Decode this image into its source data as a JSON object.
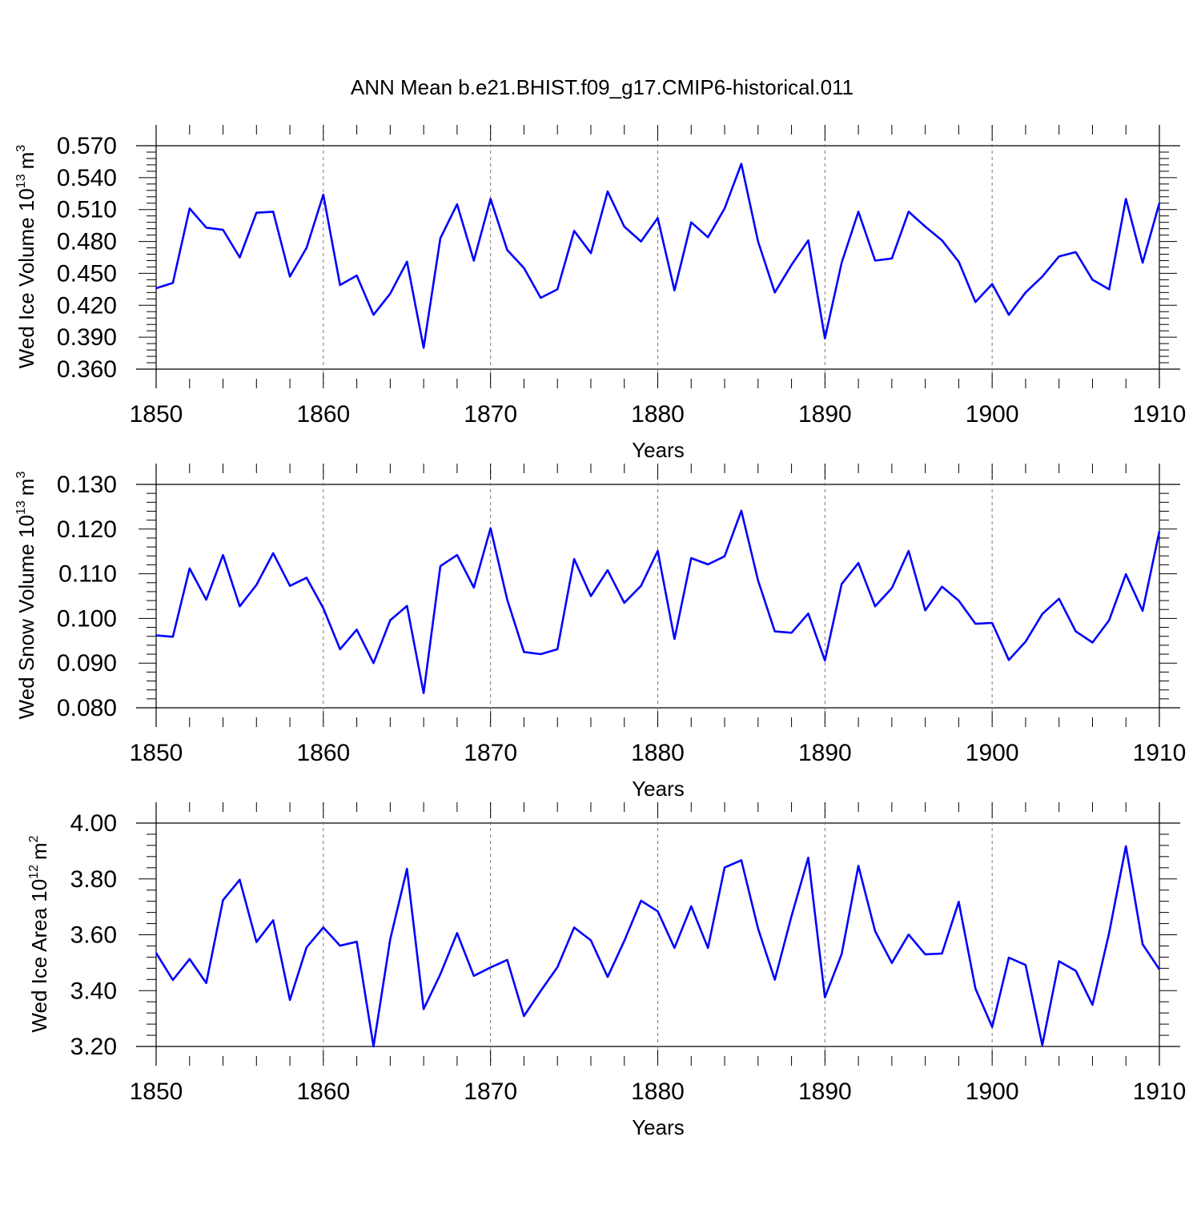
{
  "title": "ANN Mean b.e21.BHIST.f09_g17.CMIP6-historical.011",
  "chart_data": [
    {
      "type": "line",
      "ylabel_main": "Wed Ice Volume 10",
      "ylabel_exp": "13",
      "ylabel_unit": "m",
      "ylabel_unit_exp": "3",
      "xlabel": "Years",
      "xlim": [
        1850,
        1910
      ],
      "ylim": [
        0.36,
        0.57
      ],
      "yticks": [
        0.36,
        0.39,
        0.42,
        0.45,
        0.48,
        0.51,
        0.54,
        0.57
      ],
      "ytick_labels": [
        "0.360",
        "0.390",
        "0.420",
        "0.450",
        "0.480",
        "0.510",
        "0.540",
        "0.570"
      ],
      "xticks": [
        1850,
        1860,
        1870,
        1880,
        1890,
        1900,
        1910
      ],
      "xtick_labels": [
        "1850",
        "1860",
        "1870",
        "1880",
        "1890",
        "1900",
        "1910"
      ],
      "grid": "dashed vertical at major x ticks",
      "line_color": "#0000ff",
      "x": [
        1850,
        1851,
        1852,
        1853,
        1854,
        1855,
        1856,
        1857,
        1858,
        1859,
        1860,
        1861,
        1862,
        1863,
        1864,
        1865,
        1866,
        1867,
        1868,
        1869,
        1870,
        1871,
        1872,
        1873,
        1874,
        1875,
        1876,
        1877,
        1878,
        1879,
        1880,
        1881,
        1882,
        1883,
        1884,
        1885,
        1886,
        1887,
        1888,
        1889,
        1890,
        1891,
        1892,
        1893,
        1894,
        1895,
        1896,
        1897,
        1898,
        1899,
        1900,
        1901,
        1902,
        1903,
        1904,
        1905,
        1906,
        1907,
        1908,
        1909,
        1910
      ],
      "values": [
        0.436,
        0.441,
        0.511,
        0.493,
        0.491,
        0.465,
        0.507,
        0.508,
        0.447,
        0.474,
        0.524,
        0.439,
        0.448,
        0.411,
        0.431,
        0.461,
        0.38,
        0.483,
        0.515,
        0.462,
        0.52,
        0.472,
        0.455,
        0.427,
        0.435,
        0.49,
        0.469,
        0.527,
        0.494,
        0.48,
        0.502,
        0.434,
        0.498,
        0.484,
        0.511,
        0.553,
        0.48,
        0.432,
        0.458,
        0.481,
        0.389,
        0.46,
        0.508,
        0.462,
        0.464,
        0.508,
        0.494,
        0.481,
        0.461,
        0.423,
        0.44,
        0.411,
        0.432,
        0.447,
        0.466,
        0.47,
        0.444,
        0.435,
        0.52,
        0.46,
        0.516
      ]
    },
    {
      "type": "line",
      "ylabel_main": "Wed Snow Volume 10",
      "ylabel_exp": "13",
      "ylabel_unit": "m",
      "ylabel_unit_exp": "3",
      "xlabel": "Years",
      "xlim": [
        1850,
        1910
      ],
      "ylim": [
        0.08,
        0.13
      ],
      "yticks": [
        0.08,
        0.09,
        0.1,
        0.11,
        0.12,
        0.13
      ],
      "ytick_labels": [
        "0.080",
        "0.090",
        "0.100",
        "0.110",
        "0.120",
        "0.130"
      ],
      "xticks": [
        1850,
        1860,
        1870,
        1880,
        1890,
        1900,
        1910
      ],
      "xtick_labels": [
        "1850",
        "1860",
        "1870",
        "1880",
        "1890",
        "1900",
        "1910"
      ],
      "grid": "dashed vertical at major x ticks",
      "line_color": "#0000ff",
      "x": [
        1850,
        1851,
        1852,
        1853,
        1854,
        1855,
        1856,
        1857,
        1858,
        1859,
        1860,
        1861,
        1862,
        1863,
        1864,
        1865,
        1866,
        1867,
        1868,
        1869,
        1870,
        1871,
        1872,
        1873,
        1874,
        1875,
        1876,
        1877,
        1878,
        1879,
        1880,
        1881,
        1882,
        1883,
        1884,
        1885,
        1886,
        1887,
        1888,
        1889,
        1890,
        1891,
        1892,
        1893,
        1894,
        1895,
        1896,
        1897,
        1898,
        1899,
        1900,
        1901,
        1902,
        1903,
        1904,
        1905,
        1906,
        1907,
        1908,
        1909,
        1910
      ],
      "values": [
        0.0962,
        0.0959,
        0.1112,
        0.1042,
        0.1142,
        0.1027,
        0.1075,
        0.1146,
        0.1073,
        0.1091,
        0.1023,
        0.0931,
        0.0975,
        0.09,
        0.0996,
        0.1028,
        0.0833,
        0.1117,
        0.1142,
        0.1069,
        0.1202,
        0.1042,
        0.0925,
        0.092,
        0.0931,
        0.1133,
        0.105,
        0.1108,
        0.1035,
        0.1073,
        0.1151,
        0.0954,
        0.1135,
        0.1121,
        0.1139,
        0.1241,
        0.1085,
        0.0971,
        0.0968,
        0.1011,
        0.0906,
        0.1077,
        0.1124,
        0.1027,
        0.1068,
        0.1151,
        0.1018,
        0.1071,
        0.104,
        0.0988,
        0.099,
        0.0907,
        0.0948,
        0.101,
        0.1044,
        0.0971,
        0.0946,
        0.0996,
        0.1099,
        0.1017,
        0.1195
      ]
    },
    {
      "type": "line",
      "ylabel_main": "Wed Ice Area 10",
      "ylabel_exp": "12",
      "ylabel_unit": "m",
      "ylabel_unit_exp": "2",
      "xlabel": "Years",
      "xlim": [
        1850,
        1910
      ],
      "ylim": [
        3.2,
        4.0
      ],
      "yticks": [
        3.2,
        3.4,
        3.6,
        3.8,
        4.0
      ],
      "ytick_labels": [
        "3.20",
        "3.40",
        "3.60",
        "3.80",
        "4.00"
      ],
      "xticks": [
        1850,
        1860,
        1870,
        1880,
        1890,
        1900,
        1910
      ],
      "xtick_labels": [
        "1850",
        "1860",
        "1870",
        "1880",
        "1890",
        "1900",
        "1910"
      ],
      "grid": "dashed vertical at major x ticks",
      "line_color": "#0000ff",
      "x": [
        1850,
        1851,
        1852,
        1853,
        1854,
        1855,
        1856,
        1857,
        1858,
        1859,
        1860,
        1861,
        1862,
        1863,
        1864,
        1865,
        1866,
        1867,
        1868,
        1869,
        1870,
        1871,
        1872,
        1873,
        1874,
        1875,
        1876,
        1877,
        1878,
        1879,
        1880,
        1881,
        1882,
        1883,
        1884,
        1885,
        1886,
        1887,
        1888,
        1889,
        1890,
        1891,
        1892,
        1893,
        1894,
        1895,
        1896,
        1897,
        1898,
        1899,
        1900,
        1901,
        1902,
        1903,
        1904,
        1905,
        1906,
        1907,
        1908,
        1909,
        1910
      ],
      "values": [
        3.535,
        3.438,
        3.513,
        3.427,
        3.724,
        3.797,
        3.574,
        3.652,
        3.367,
        3.555,
        3.626,
        3.561,
        3.575,
        3.2,
        3.584,
        3.836,
        3.334,
        3.459,
        3.606,
        3.453,
        3.483,
        3.51,
        3.309,
        3.399,
        3.484,
        3.626,
        3.58,
        3.449,
        3.578,
        3.722,
        3.684,
        3.553,
        3.702,
        3.553,
        3.841,
        3.867,
        3.622,
        3.439,
        3.667,
        3.876,
        3.376,
        3.531,
        3.847,
        3.613,
        3.499,
        3.601,
        3.53,
        3.533,
        3.718,
        3.407,
        3.27,
        3.518,
        3.492,
        3.205,
        3.505,
        3.471,
        3.349,
        3.607,
        3.917,
        3.566,
        3.476
      ]
    }
  ]
}
